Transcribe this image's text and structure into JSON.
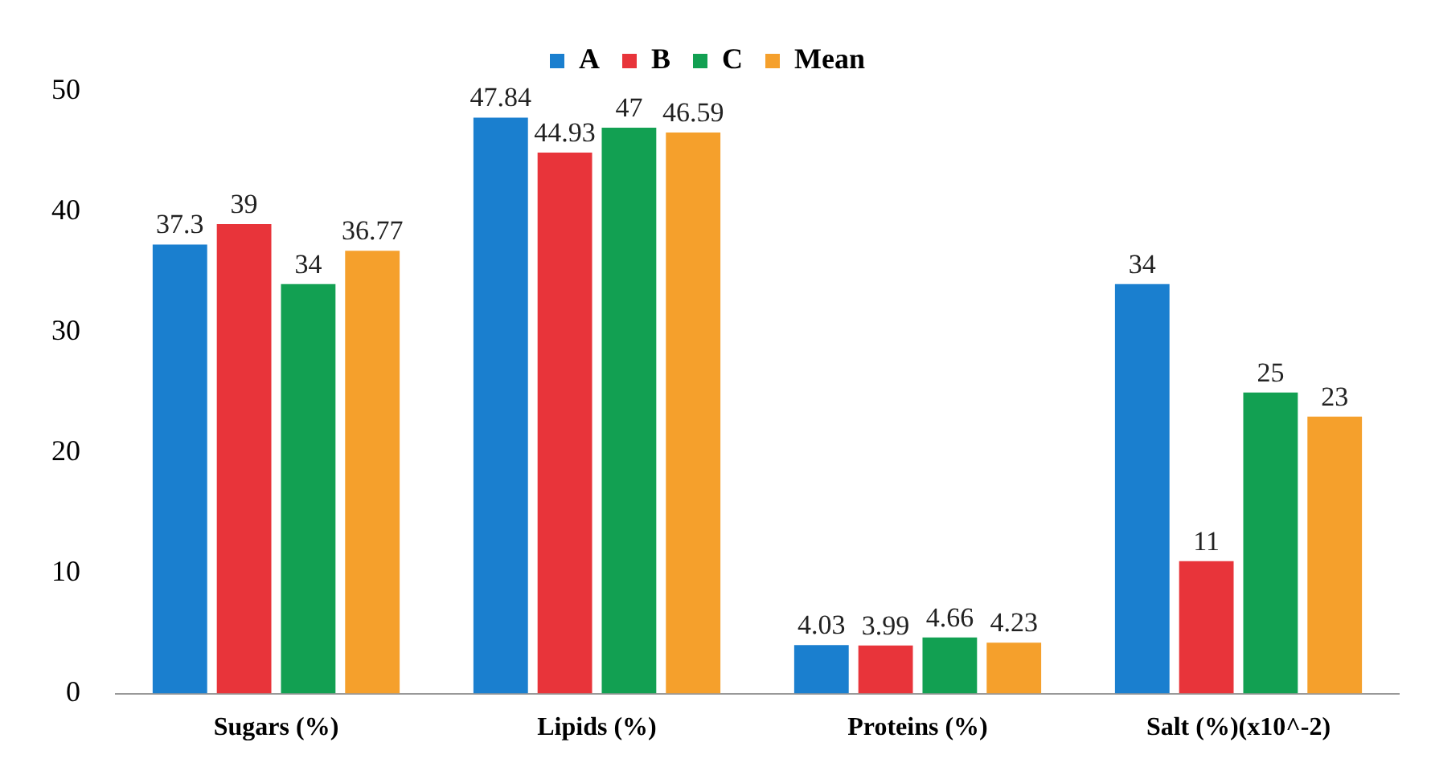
{
  "chart_data": {
    "type": "bar",
    "categories": [
      "Sugars (%)",
      "Lipids (%)",
      "Proteins (%)",
      "Salt (%)(x10^-2)"
    ],
    "series": [
      {
        "name": "A",
        "color": "#1a7fcf",
        "values": [
          37.3,
          47.84,
          4.03,
          34
        ]
      },
      {
        "name": "B",
        "color": "#e8343a",
        "values": [
          39,
          44.93,
          3.99,
          11
        ]
      },
      {
        "name": "C",
        "color": "#12a052",
        "values": [
          34,
          47,
          4.66,
          25
        ]
      },
      {
        "name": "Mean",
        "color": "#f5a02c",
        "values": [
          36.77,
          46.59,
          4.23,
          23
        ]
      }
    ],
    "ylim": [
      0,
      50
    ],
    "yticks": [
      0,
      10,
      20,
      30,
      40,
      50
    ],
    "grid": false,
    "legend": "top",
    "data_labels": true
  }
}
